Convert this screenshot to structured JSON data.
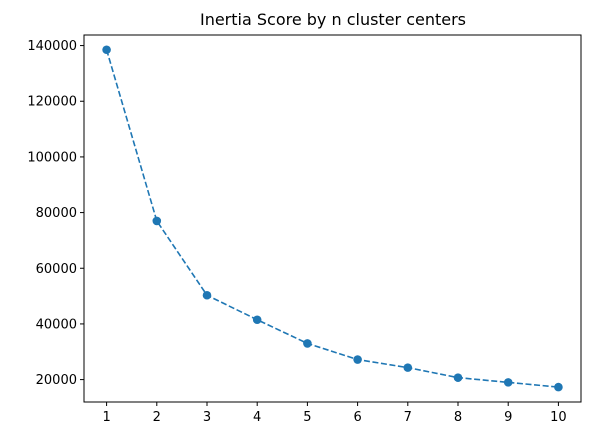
{
  "chart_data": {
    "type": "line",
    "title": "Inertia Score by n cluster centers",
    "xlabel": "",
    "ylabel": "",
    "x": [
      1,
      2,
      3,
      4,
      5,
      6,
      7,
      8,
      9,
      10
    ],
    "series": [
      {
        "values": [
          138500,
          77000,
          50300,
          41500,
          33000,
          27200,
          24300,
          20700,
          19000,
          17300
        ],
        "color": "#1f77b4",
        "line_style": "dashed",
        "marker": "circle"
      }
    ],
    "xlim": [
      0.55,
      10.45
    ],
    "ylim": [
      11950,
      143800
    ],
    "xticks": [
      1,
      2,
      3,
      4,
      5,
      6,
      7,
      8,
      9,
      10
    ],
    "yticks": [
      20000,
      40000,
      60000,
      80000,
      100000,
      120000,
      140000
    ],
    "grid": false,
    "legend": "none"
  }
}
